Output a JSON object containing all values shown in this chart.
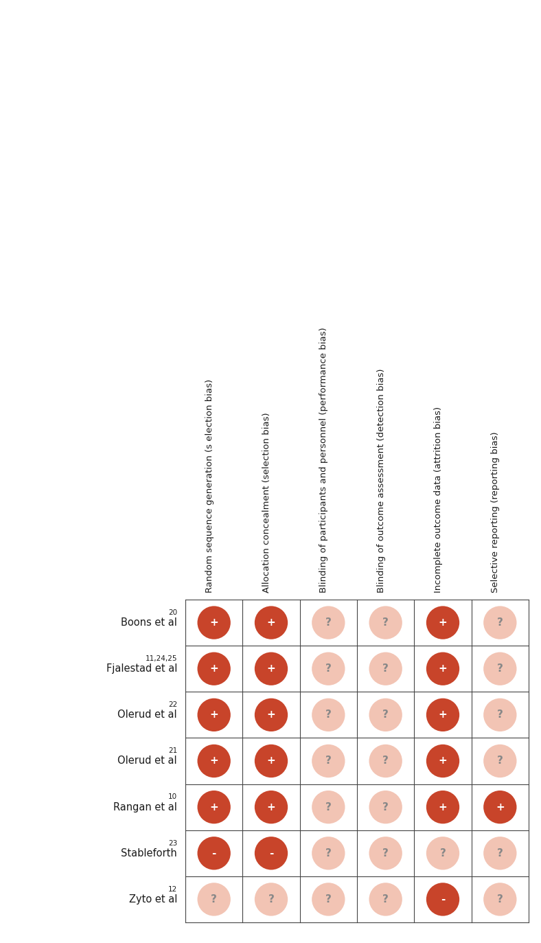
{
  "studies": [
    "Boons et al",
    "Fjalestad et al",
    "Olerud et al",
    "Olerud et al",
    "Rangan et al",
    "Stableforth",
    "Zyto et al"
  ],
  "superscripts": [
    "20",
    "11,24,25",
    "22",
    "21",
    "10",
    "23",
    "12"
  ],
  "columns": [
    "Random sequence generation (s election bias)",
    "Allocation concealment (selection bias)",
    "Blinding of participants and personnel (performance bias)",
    "Blinding of outcome assessment (detection bias)",
    "Incomplete outcome data (attrition bias)",
    "Selective reporting (reporting bias)"
  ],
  "data": [
    [
      "+",
      "+",
      "?",
      "?",
      "+",
      "?"
    ],
    [
      "+",
      "+",
      "?",
      "?",
      "+",
      "?"
    ],
    [
      "+",
      "+",
      "?",
      "?",
      "+",
      "?"
    ],
    [
      "+",
      "+",
      "?",
      "?",
      "+",
      "?"
    ],
    [
      "+",
      "+",
      "?",
      "?",
      "+",
      "+"
    ],
    [
      "-",
      "-",
      "?",
      "?",
      "?",
      "?"
    ],
    [
      "?",
      "?",
      "?",
      "?",
      "-",
      "?"
    ]
  ],
  "color_dark_red": "#c8442a",
  "color_light_pink": "#f2c4b4",
  "bg_color": "#ffffff",
  "text_color": "#1a1a1a",
  "grid_color": "#444444",
  "fig_width": 7.88,
  "fig_height": 13.73,
  "dpi": 100
}
